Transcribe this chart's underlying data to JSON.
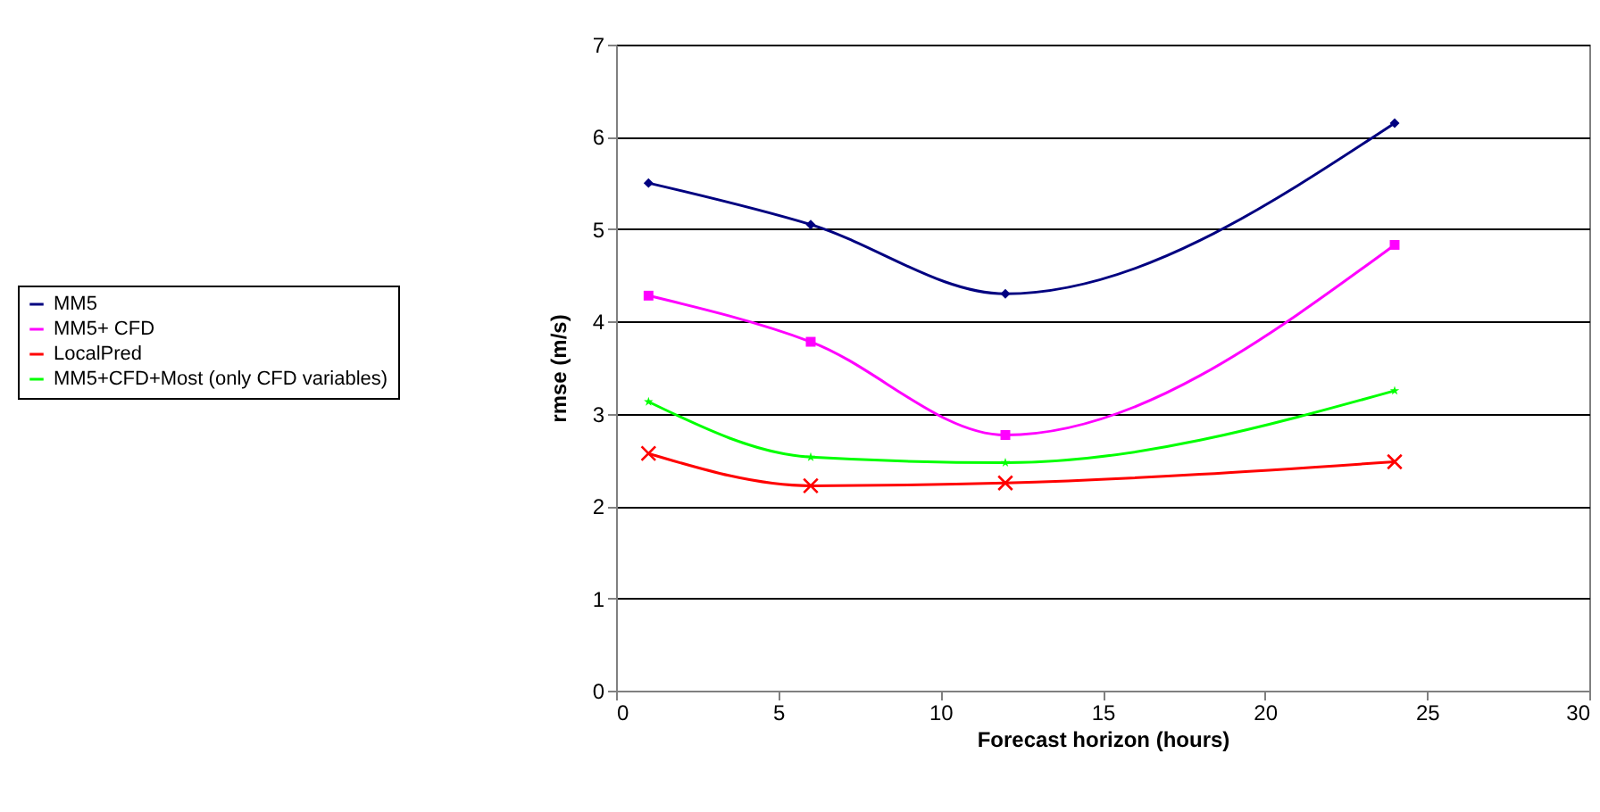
{
  "chart_data": {
    "type": "line",
    "xlabel": "Forecast horizon (hours)",
    "ylabel": "rmse (m/s)",
    "x": [
      1,
      6,
      12,
      24
    ],
    "series": [
      {
        "name": "MM5",
        "color": "#000080",
        "marker": "diamond",
        "values": [
          5.5,
          5.05,
          4.3,
          6.15
        ]
      },
      {
        "name": "MM5+ CFD",
        "color": "#ff00ff",
        "marker": "square",
        "values": [
          4.28,
          3.78,
          2.77,
          4.83
        ]
      },
      {
        "name": "LocalPred",
        "color": "#ff0000",
        "marker": "cross",
        "values": [
          2.57,
          2.22,
          2.25,
          2.48
        ]
      },
      {
        "name": "MM5+CFD+Most (only CFD variables)",
        "color": "#00ff00",
        "marker": "star",
        "values": [
          3.13,
          2.53,
          2.47,
          3.25
        ]
      }
    ],
    "xlim": [
      0,
      30
    ],
    "xticks": [
      0,
      5,
      10,
      15,
      20,
      25,
      30
    ],
    "ylim": [
      0,
      7
    ],
    "yticks": [
      0,
      1,
      2,
      3,
      4,
      5,
      6,
      7
    ],
    "grid": "y",
    "legend": "left"
  }
}
